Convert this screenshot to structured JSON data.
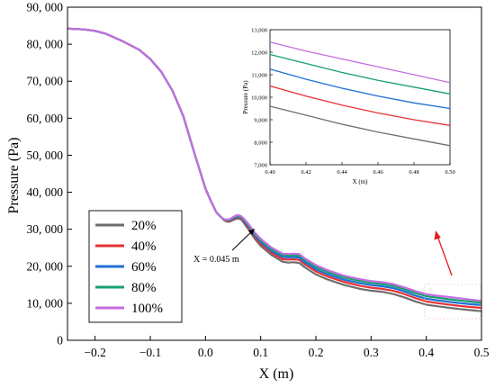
{
  "chart_data": {
    "type": "line",
    "x": [
      -0.25,
      -0.22,
      -0.2,
      -0.18,
      -0.15,
      -0.12,
      -0.1,
      -0.08,
      -0.06,
      -0.04,
      -0.02,
      0.0,
      0.01,
      0.02,
      0.03,
      0.035,
      0.04,
      0.045,
      0.05,
      0.055,
      0.06,
      0.065,
      0.07,
      0.08,
      0.09,
      0.1,
      0.12,
      0.14,
      0.15,
      0.16,
      0.17,
      0.18,
      0.2,
      0.22,
      0.25,
      0.28,
      0.3,
      0.32,
      0.34,
      0.36,
      0.38,
      0.4,
      0.42,
      0.44,
      0.46,
      0.48,
      0.5
    ],
    "series": [
      {
        "name": "20%",
        "color": "#6e6e6e",
        "values": [
          84200,
          84000,
          83600,
          82800,
          80800,
          78500,
          76000,
          72500,
          67500,
          60500,
          50500,
          41000,
          37500,
          34500,
          33000,
          32300,
          32000,
          32100,
          32500,
          32800,
          32900,
          32600,
          31600,
          29500,
          27300,
          25500,
          23000,
          21200,
          21000,
          21100,
          20900,
          19700,
          17800,
          16500,
          15000,
          13900,
          13400,
          13100,
          12500,
          11600,
          10500,
          9600,
          9200,
          8800,
          8450,
          8150,
          7850
        ]
      },
      {
        "name": "40%",
        "color": "#e63232",
        "values": [
          84200,
          84000,
          83600,
          82800,
          80800,
          78500,
          76000,
          72500,
          67500,
          60500,
          50500,
          41000,
          37500,
          34500,
          33000,
          32400,
          32200,
          32300,
          32700,
          33100,
          33200,
          32900,
          32000,
          29900,
          27800,
          26100,
          23600,
          21900,
          21800,
          21900,
          21700,
          20500,
          18600,
          17300,
          15800,
          14700,
          14200,
          13900,
          13400,
          12500,
          11400,
          10500,
          10050,
          9650,
          9300,
          9000,
          8750
        ]
      },
      {
        "name": "60%",
        "color": "#1f6fd6",
        "values": [
          84200,
          84000,
          83600,
          82800,
          80800,
          78500,
          76000,
          72500,
          67500,
          60500,
          50500,
          41000,
          37500,
          34500,
          33000,
          32500,
          32400,
          32500,
          32900,
          33300,
          33400,
          33100,
          32300,
          30300,
          28200,
          26600,
          24100,
          22500,
          22400,
          22500,
          22300,
          21100,
          19200,
          17900,
          16400,
          15400,
          14900,
          14600,
          14100,
          13200,
          12100,
          11250,
          10800,
          10400,
          10050,
          9750,
          9500
        ]
      },
      {
        "name": "80%",
        "color": "#1a9e6e",
        "values": [
          84200,
          84000,
          83600,
          82800,
          80800,
          78500,
          76000,
          72500,
          67500,
          60500,
          50500,
          41000,
          37500,
          34500,
          33000,
          32600,
          32500,
          32600,
          33100,
          33500,
          33600,
          33300,
          32600,
          30700,
          28600,
          27000,
          24600,
          23000,
          22900,
          23000,
          22800,
          21700,
          19800,
          18500,
          17000,
          16000,
          15500,
          15200,
          14700,
          13800,
          12800,
          11900,
          11500,
          11100,
          10750,
          10450,
          10150
        ]
      },
      {
        "name": "100%",
        "color": "#c46ee0",
        "values": [
          84200,
          84000,
          83600,
          82800,
          80800,
          78500,
          76000,
          72500,
          67500,
          60500,
          50500,
          41000,
          37500,
          34500,
          33000,
          32700,
          32600,
          32800,
          33300,
          33700,
          33800,
          33500,
          32800,
          31000,
          29000,
          27400,
          25000,
          23400,
          23300,
          23400,
          23300,
          22100,
          20300,
          19000,
          17500,
          16500,
          16000,
          15700,
          15200,
          14300,
          13300,
          12450,
          12050,
          11700,
          11350,
          11000,
          10650
        ]
      }
    ],
    "xlabel": "X (m)",
    "ylabel": "Pressure (Pa)",
    "xlim": [
      -0.25,
      0.5
    ],
    "ylim": [
      0,
      90000
    ],
    "xticks": [
      "-0.2",
      "-0.1",
      "0.0",
      "0.1",
      "0.2",
      "0.3",
      "0.4",
      "0.5"
    ],
    "yticks": [
      "0",
      "10, 000",
      "20, 000",
      "30, 000",
      "40, 000",
      "50, 000",
      "60, 000",
      "70, 000",
      "80, 000",
      "90, 000"
    ],
    "legend_position": "bottom-left",
    "grid": false,
    "annotation": {
      "text": "X = 0.045 m",
      "x": 0.045,
      "y": 32000
    },
    "inset": {
      "xlabel": "X (m)",
      "ylabel": "Pressure (Pa)",
      "xlim": [
        0.4,
        0.5
      ],
      "ylim": [
        7000,
        13000
      ],
      "xticks": [
        "0.40",
        "0.42",
        "0.44",
        "0.46",
        "0.48",
        "0.50"
      ],
      "yticks": [
        "7,000",
        "8,000",
        "9,000",
        "10,000",
        "11,000",
        "12,000",
        "13,000"
      ]
    }
  }
}
